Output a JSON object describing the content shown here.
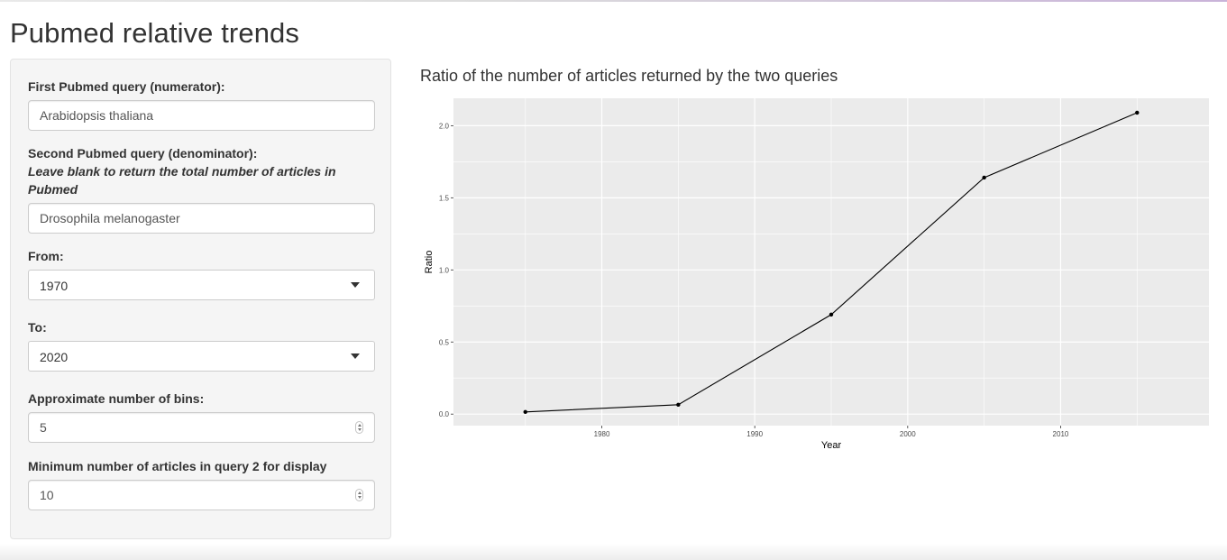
{
  "page": {
    "title": "Pubmed relative trends"
  },
  "sidebar": {
    "query1": {
      "label": "First Pubmed query (numerator):",
      "value": "Arabidopsis thaliana"
    },
    "query2": {
      "label": "Second Pubmed query (denominator):",
      "hint": "Leave blank to return the total number of articles in Pubmed",
      "value": "Drosophila melanogaster"
    },
    "from": {
      "label": "From:",
      "value": "1970"
    },
    "to": {
      "label": "To:",
      "value": "2020"
    },
    "bins": {
      "label": "Approximate number of bins:",
      "value": "5"
    },
    "min_articles": {
      "label": "Minimum number of articles in query 2 for display",
      "value": "10"
    }
  },
  "main": {
    "plot_title": "Ratio of the number of articles returned by the two queries"
  },
  "chart_data": {
    "type": "line",
    "x": [
      1975,
      1985,
      1995,
      2005,
      2015
    ],
    "y": [
      0.015,
      0.065,
      0.69,
      1.64,
      2.09
    ],
    "xlabel": "Year",
    "ylabel": "Ratio",
    "xlim": [
      1970.3,
      2019.7
    ],
    "ylim": [
      -0.08,
      2.19
    ],
    "xticks": [
      1980,
      1990,
      2000,
      2010
    ],
    "yticks": [
      0.0,
      0.5,
      1.0,
      1.5,
      2.0
    ],
    "xtick_labels": [
      "1980",
      "1990",
      "2000",
      "2010"
    ],
    "ytick_labels": [
      "0.0",
      "0.5",
      "1.0",
      "1.5",
      "2.0"
    ],
    "grid": true,
    "panel_color": "#ebebeb",
    "line_color": "#000000"
  }
}
